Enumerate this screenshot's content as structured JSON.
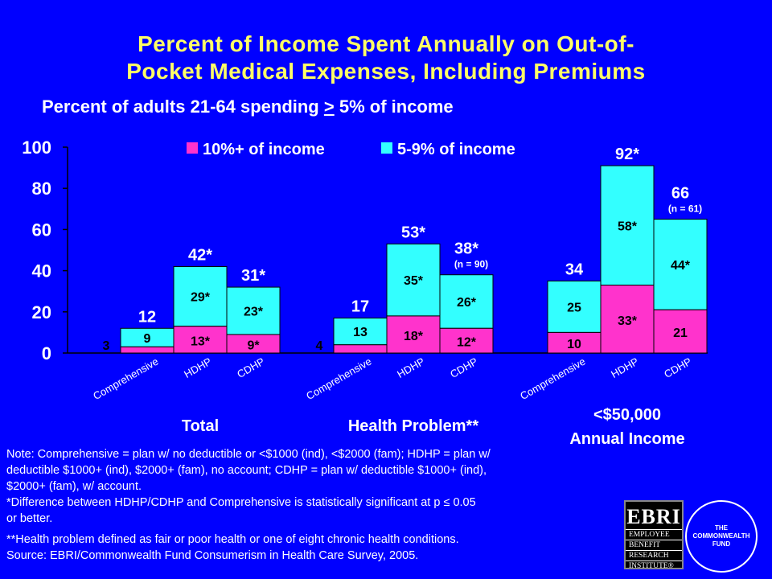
{
  "title_line1": "Percent of Income Spent Annually on Out-of-",
  "title_line2": "Pocket Medical Expenses, Including Premiums",
  "subtitle_pre": "Percent of adults 21-64 spending",
  "subtitle_ge": ">",
  "subtitle_post": "5% of income",
  "colors": {
    "background": "#0000FF",
    "pink": "#FF33CC",
    "cyan": "#33FFFF",
    "title": "#FFFF66",
    "text": "#FFFFFF"
  },
  "chart_data": {
    "type": "bar",
    "stacked": true,
    "ylim": [
      0,
      100
    ],
    "yticks": [
      0,
      20,
      40,
      60,
      80,
      100
    ],
    "legend": [
      "10%+ of income",
      "5-9% of income"
    ],
    "legend_position": "top",
    "groups": [
      {
        "label": "Total",
        "bars": [
          {
            "category": "Comprehensive",
            "pink": 3,
            "cyan": 9,
            "pink_label": "3",
            "cyan_label": "9",
            "total_label": "12",
            "n_label": ""
          },
          {
            "category": "HDHP",
            "pink": 13,
            "cyan": 29,
            "pink_label": "13*",
            "cyan_label": "29*",
            "total_label": "42*",
            "n_label": ""
          },
          {
            "category": "CDHP",
            "pink": 9,
            "cyan": 23,
            "pink_label": "9*",
            "cyan_label": "23*",
            "total_label": "31*",
            "n_label": ""
          }
        ]
      },
      {
        "label": "Health Problem**",
        "bars": [
          {
            "category": "Comprehensive",
            "pink": 4,
            "cyan": 13,
            "pink_label": "4",
            "cyan_label": "13",
            "total_label": "17",
            "n_label": ""
          },
          {
            "category": "HDHP",
            "pink": 18,
            "cyan": 35,
            "pink_label": "18*",
            "cyan_label": "35*",
            "total_label": "53*",
            "n_label": ""
          },
          {
            "category": "CDHP",
            "pink": 12,
            "cyan": 26,
            "pink_label": "12*",
            "cyan_label": "26*",
            "total_label": "38*",
            "n_label": "(n = 90)"
          }
        ]
      },
      {
        "label": "<$50,000",
        "label2": "Annual Income",
        "bars": [
          {
            "category": "Comprehensive",
            "pink": 10,
            "cyan": 25,
            "pink_label": "10",
            "cyan_label": "25",
            "total_label": "34",
            "n_label": ""
          },
          {
            "category": "HDHP",
            "pink": 33,
            "cyan": 58,
            "pink_label": "33*",
            "cyan_label": "58*",
            "total_label": "92*",
            "n_label": ""
          },
          {
            "category": "CDHP",
            "pink": 21,
            "cyan": 44,
            "pink_label": "21",
            "cyan_label": "44*",
            "total_label": "66",
            "n_label": "(n = 61)"
          }
        ]
      }
    ]
  },
  "notes": {
    "line1": "Note: Comprehensive = plan w/ no deductible or <$1000 (ind), <$2000 (fam); HDHP = plan w/",
    "line2": "deductible $1000+ (ind),   $2000+ (fam), no account; CDHP = plan w/ deductible $1000+ (ind),",
    "line3": "$2000+ (fam), w/ account.",
    "line4": "*Difference between HDHP/CDHP and Comprehensive is statistically significant at p ≤ 0.05",
    "line5": "or better.",
    "line6": "**Health problem defined as fair or poor health or one of eight chronic health conditions.",
    "line7": "Source: EBRI/Commonwealth Fund Consumerism in Health Care Survey, 2005."
  },
  "logos": {
    "ebri_big": "EBRI",
    "ebri_line1": "EMPLOYEE",
    "ebri_line2": "BENEFIT",
    "ebri_line3": "RESEARCH",
    "ebri_line4": "INSTITUTE®",
    "cwf_line1": "THE",
    "cwf_line2": "COMMONWEALTH",
    "cwf_line3": "FUND"
  }
}
